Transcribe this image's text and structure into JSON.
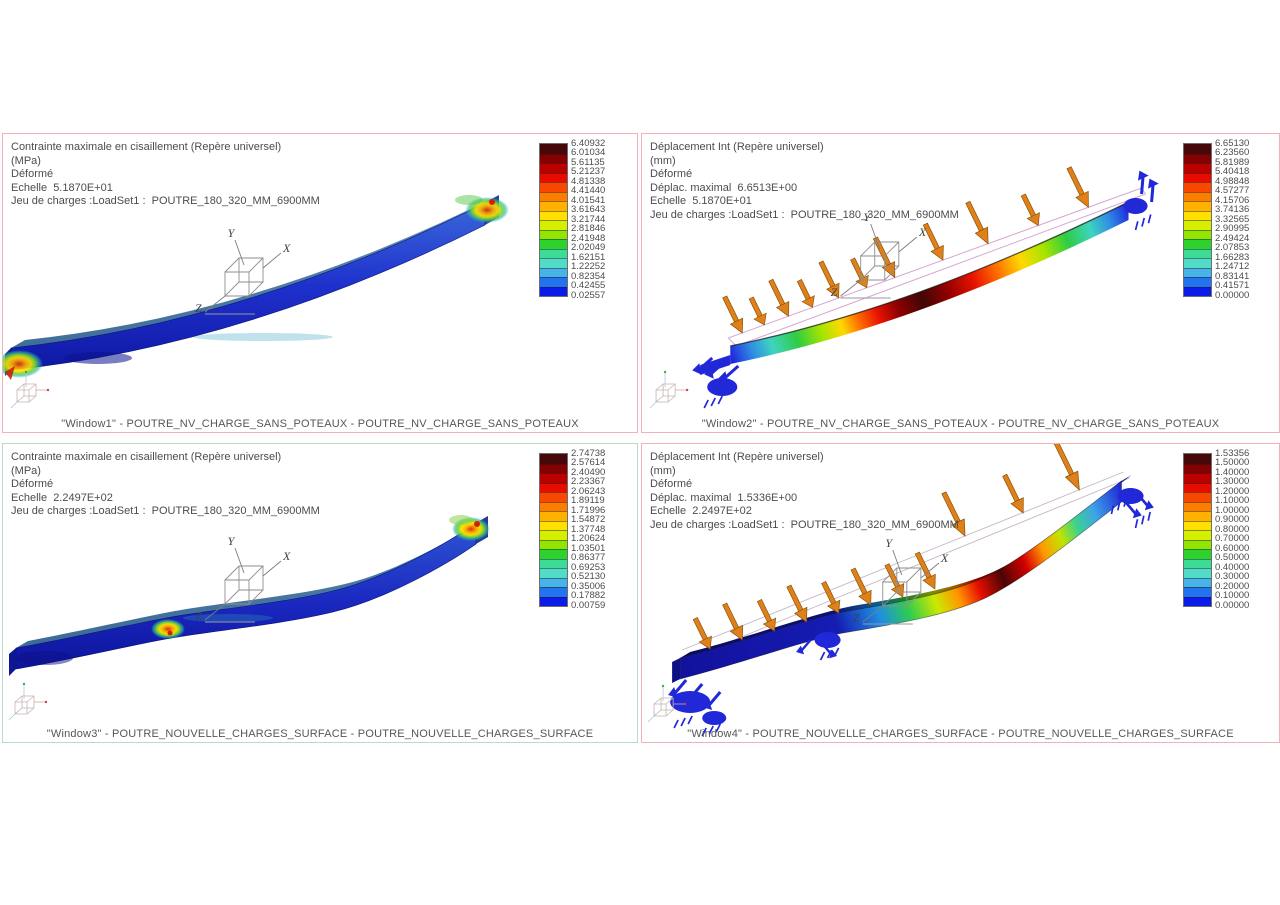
{
  "background_color": "#ffffff",
  "palette": [
    "#460808",
    "#850000",
    "#bb0000",
    "#e60c00",
    "#f84800",
    "#fd7d00",
    "#ffb000",
    "#ffe000",
    "#d6ef00",
    "#93e400",
    "#2ed22e",
    "#3cdc96",
    "#52dcc8",
    "#46b4e6",
    "#2372ee",
    "#0c1ce8"
  ],
  "triad": {
    "x": "X",
    "y": "Y",
    "z": "Z"
  },
  "windows": [
    {
      "name": "Window1",
      "border_color": "#f0b2b6",
      "header_lines": [
        "Contrainte maximale en cisaillement (Repère universel)",
        "(MPa)",
        "Déformé",
        "Echelle  5.1870E+01",
        "Jeu de charges :LoadSet1 :  POUTRE_180_320_MM_6900MM"
      ],
      "legend_values": [
        "6.40932",
        "6.01034",
        "5.61135",
        "5.21237",
        "4.81338",
        "4.41440",
        "4.01541",
        "3.61643",
        "3.21744",
        "2.81846",
        "2.41948",
        "2.02049",
        "1.62151",
        "1.22252",
        "0.82354",
        "0.42455",
        "0.02557"
      ],
      "title": "\"Window1\" - POUTRE_NV_CHARGE_SANS_POTEAUX - POUTRE_NV_CHARGE_SANS_POTEAUX"
    },
    {
      "name": "Window2",
      "border_color": "#f0b2b6",
      "header_lines": [
        "Déplacement Int (Repère universel)",
        "(mm)",
        "Déformé",
        "Déplac. maximal  6.6513E+00",
        "Echelle  5.1870E+01",
        "Jeu de charges :LoadSet1 :  POUTRE_180_320_MM_6900MM"
      ],
      "legend_values": [
        "6.65130",
        "6.23560",
        "5.81989",
        "5.40418",
        "4.98848",
        "4.57277",
        "4.15706",
        "3.74136",
        "3.32565",
        "2.90995",
        "2.49424",
        "2.07853",
        "1.66283",
        "1.24712",
        "0.83141",
        "0.41571",
        "0.00000"
      ],
      "title": "\"Window2\" - POUTRE_NV_CHARGE_SANS_POTEAUX - POUTRE_NV_CHARGE_SANS_POTEAUX"
    },
    {
      "name": "Window3",
      "border_color": "#b9dcc6",
      "header_lines": [
        "Contrainte maximale en cisaillement (Repère universel)",
        "(MPa)",
        "Déformé",
        "Echelle  2.2497E+02",
        "Jeu de charges :LoadSet1 :  POUTRE_180_320_MM_6900MM"
      ],
      "legend_values": [
        "2.74738",
        "2.57614",
        "2.40490",
        "2.23367",
        "2.06243",
        "1.89119",
        "1.71996",
        "1.54872",
        "1.37748",
        "1.20624",
        "1.03501",
        "0.86377",
        "0.69253",
        "0.52130",
        "0.35006",
        "0.17882",
        "0.00759"
      ],
      "title": "\"Window3\" - POUTRE_NOUVELLE_CHARGES_SURFACE - POUTRE_NOUVELLE_CHARGES_SURFACE"
    },
    {
      "name": "Window4",
      "border_color": "#f0b2b6",
      "header_lines": [
        "Déplacement Int (Repère universel)",
        "(mm)",
        "Déformé",
        "Déplac. maximal  1.5336E+00",
        "Echelle  2.2497E+02",
        "Jeu de charges :LoadSet1 :  POUTRE_180_320_MM_6900MM"
      ],
      "legend_values": [
        "1.53356",
        "1.50000",
        "1.40000",
        "1.30000",
        "1.20000",
        "1.10000",
        "1.00000",
        "0.90000",
        "0.80000",
        "0.70000",
        "0.60000",
        "0.50000",
        "0.40000",
        "0.30000",
        "0.20000",
        "0.10000",
        "0.00000"
      ],
      "title": "\"Window4\" - POUTRE_NOUVELLE_CHARGES_SURFACE - POUTRE_NOUVELLE_CHARGES_SURFACE"
    }
  ],
  "chart_data": [
    {
      "type": "heatmap",
      "window": "Window1",
      "quantity": "Contrainte maximale en cisaillement (Repère universel)",
      "unit": "MPa",
      "deformed": true,
      "scale": "5.1870E+01",
      "load_set": "LoadSet1",
      "model": "POUTRE_180_320_MM_6900MM",
      "legend_ticks": [
        6.40932,
        6.01034,
        5.61135,
        5.21237,
        4.81338,
        4.4144,
        4.01541,
        3.61643,
        3.21744,
        2.81846,
        2.41948,
        2.02049,
        1.62151,
        1.22252,
        0.82354,
        0.42455,
        0.02557
      ]
    },
    {
      "type": "heatmap",
      "window": "Window2",
      "quantity": "Déplacement Int (Repère universel)",
      "unit": "mm",
      "deformed": true,
      "max_displacement": "6.6513E+00",
      "scale": "5.1870E+01",
      "load_set": "LoadSet1",
      "model": "POUTRE_180_320_MM_6900MM",
      "legend_ticks": [
        6.6513,
        6.2356,
        5.81989,
        5.40418,
        4.98848,
        4.57277,
        4.15706,
        3.74136,
        3.32565,
        2.90995,
        2.49424,
        2.07853,
        1.66283,
        1.24712,
        0.83141,
        0.41571,
        0.0
      ]
    },
    {
      "type": "heatmap",
      "window": "Window3",
      "quantity": "Contrainte maximale en cisaillement (Repère universel)",
      "unit": "MPa",
      "deformed": true,
      "scale": "2.2497E+02",
      "load_set": "LoadSet1",
      "model": "POUTRE_180_320_MM_6900MM",
      "legend_ticks": [
        2.74738,
        2.57614,
        2.4049,
        2.23367,
        2.06243,
        1.89119,
        1.71996,
        1.54872,
        1.37748,
        1.20624,
        1.03501,
        0.86377,
        0.69253,
        0.5213,
        0.35006,
        0.17882,
        0.00759
      ]
    },
    {
      "type": "heatmap",
      "window": "Window4",
      "quantity": "Déplacement Int (Repère universel)",
      "unit": "mm",
      "deformed": true,
      "max_displacement": "1.5336E+00",
      "scale": "2.2497E+02",
      "load_set": "LoadSet1",
      "model": "POUTRE_180_320_MM_6900MM",
      "legend_ticks": [
        1.53356,
        1.5,
        1.4,
        1.3,
        1.2,
        1.1,
        1.0,
        0.9,
        0.8,
        0.7,
        0.6,
        0.5,
        0.4,
        0.3,
        0.2,
        0.1,
        0.0
      ]
    }
  ]
}
